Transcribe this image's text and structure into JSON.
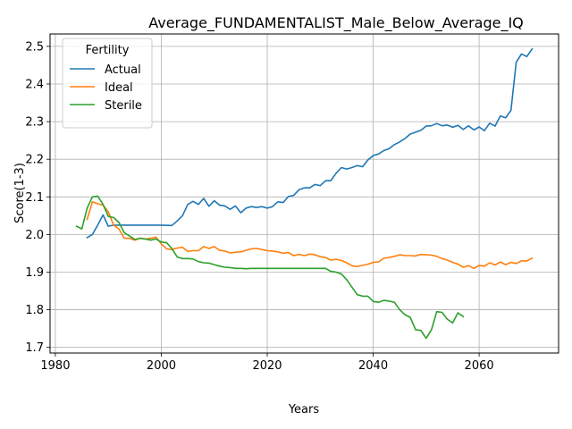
{
  "chart_data": {
    "type": "line",
    "title": "Average_FUNDAMENTALIST_Male_Below_Average_IQ",
    "xlabel": "Years",
    "ylabel": "Score(1-3)",
    "xlim": [
      1979,
      2075
    ],
    "ylim": [
      1.685,
      2.533
    ],
    "xticks": [
      1980,
      2000,
      2020,
      2040,
      2060
    ],
    "yticks": [
      1.7,
      1.8,
      1.9,
      2.0,
      2.1,
      2.2,
      2.3,
      2.4,
      2.5
    ],
    "grid": true,
    "legend": {
      "title": "Fertility",
      "placement": "top-left"
    },
    "series": [
      {
        "name": "Actual",
        "color": "#1f77b4",
        "x": [
          1986,
          1987,
          1988,
          1989,
          1990,
          1991,
          1992,
          1993,
          1995,
          1998,
          2000,
          2002,
          2003,
          2004,
          2005,
          2006,
          2007,
          2008,
          2009,
          2010,
          2011,
          2012,
          2013,
          2014,
          2015,
          2016,
          2017,
          2018,
          2019,
          2020,
          2021,
          2022,
          2023,
          2024,
          2025,
          2026,
          2027,
          2028,
          2029,
          2030,
          2031,
          2032,
          2033,
          2034,
          2035,
          2036,
          2037,
          2038,
          2039,
          2040,
          2041,
          2042,
          2043,
          2044,
          2045,
          2046,
          2047,
          2048,
          2049,
          2050,
          2051,
          2052,
          2053,
          2054,
          2055,
          2056,
          2057,
          2058,
          2059,
          2060,
          2061,
          2062,
          2063,
          2064,
          2065,
          2066,
          2067,
          2068,
          2069,
          2070
        ],
        "values": [
          1.992,
          2.0,
          2.025,
          2.052,
          2.022,
          2.025,
          2.025,
          2.025,
          2.025,
          2.025,
          2.025,
          2.024,
          2.036,
          2.05,
          2.08,
          2.088,
          2.08,
          2.096,
          2.075,
          2.09,
          2.078,
          2.076,
          2.067,
          2.076,
          2.058,
          2.07,
          2.074,
          2.072,
          2.074,
          2.07,
          2.074,
          2.087,
          2.085,
          2.101,
          2.104,
          2.119,
          2.124,
          2.124,
          2.133,
          2.13,
          2.143,
          2.143,
          2.163,
          2.178,
          2.174,
          2.178,
          2.183,
          2.18,
          2.198,
          2.21,
          2.214,
          2.223,
          2.228,
          2.239,
          2.246,
          2.255,
          2.267,
          2.272,
          2.277,
          2.288,
          2.289,
          2.295,
          2.289,
          2.291,
          2.285,
          2.29,
          2.279,
          2.289,
          2.278,
          2.286,
          2.276,
          2.296,
          2.288,
          2.315,
          2.31,
          2.33,
          2.458,
          2.48,
          2.473,
          2.493
        ]
      },
      {
        "name": "Ideal",
        "color": "#ff7f0e",
        "x": [
          1986,
          1987,
          1988,
          1989,
          1990,
          1991,
          1992,
          1993,
          1994,
          1995,
          1996,
          1997,
          1998,
          1999,
          2000,
          2001,
          2002,
          2003,
          2004,
          2005,
          2006,
          2007,
          2008,
          2009,
          2010,
          2011,
          2012,
          2013,
          2014,
          2015,
          2016,
          2017,
          2018,
          2019,
          2020,
          2021,
          2022,
          2023,
          2024,
          2025,
          2026,
          2027,
          2028,
          2029,
          2030,
          2031,
          2032,
          2033,
          2034,
          2035,
          2036,
          2037,
          2038,
          2039,
          2040,
          2041,
          2042,
          2043,
          2044,
          2045,
          2046,
          2047,
          2048,
          2049,
          2050,
          2051,
          2052,
          2053,
          2054,
          2055,
          2056,
          2057,
          2058,
          2059,
          2060,
          2061,
          2062,
          2063,
          2064,
          2065,
          2066,
          2067,
          2068,
          2069,
          2070
        ],
        "values": [
          2.04,
          2.087,
          2.082,
          2.078,
          2.06,
          2.025,
          2.015,
          1.99,
          1.99,
          1.985,
          1.99,
          1.988,
          1.99,
          1.993,
          1.975,
          1.962,
          1.96,
          1.964,
          1.966,
          1.955,
          1.957,
          1.957,
          1.968,
          1.963,
          1.968,
          1.958,
          1.956,
          1.951,
          1.953,
          1.954,
          1.958,
          1.962,
          1.963,
          1.96,
          1.957,
          1.956,
          1.954,
          1.95,
          1.952,
          1.944,
          1.947,
          1.944,
          1.948,
          1.946,
          1.941,
          1.939,
          1.932,
          1.934,
          1.931,
          1.925,
          1.917,
          1.915,
          1.918,
          1.921,
          1.926,
          1.927,
          1.937,
          1.939,
          1.942,
          1.946,
          1.944,
          1.944,
          1.943,
          1.947,
          1.946,
          1.945,
          1.942,
          1.936,
          1.932,
          1.926,
          1.921,
          1.913,
          1.917,
          1.91,
          1.918,
          1.916,
          1.925,
          1.919,
          1.927,
          1.92,
          1.926,
          1.923,
          1.93,
          1.93,
          1.937
        ]
      },
      {
        "name": "Sterile",
        "color": "#2ca02c",
        "x": [
          1984,
          1985,
          1986,
          1987,
          1988,
          1989,
          1990,
          1991,
          1992,
          1993,
          1994,
          1995,
          1996,
          1997,
          1998,
          1999,
          2000,
          2001,
          2002,
          2003,
          2004,
          2005,
          2006,
          2007,
          2008,
          2009,
          2010,
          2011,
          2012,
          2013,
          2014,
          2015,
          2016,
          2017,
          2018,
          2020,
          2025,
          2031,
          2032,
          2033,
          2034,
          2035,
          2036,
          2037,
          2038,
          2039,
          2040,
          2041,
          2042,
          2043,
          2044,
          2045,
          2046,
          2047,
          2048,
          2049,
          2050,
          2051,
          2052,
          2053,
          2054,
          2055,
          2056,
          2057
        ],
        "values": [
          2.022,
          2.015,
          2.07,
          2.1,
          2.102,
          2.08,
          2.048,
          2.045,
          2.032,
          2.005,
          1.996,
          1.987,
          1.99,
          1.988,
          1.985,
          1.988,
          1.98,
          1.978,
          1.963,
          1.94,
          1.936,
          1.936,
          1.935,
          1.928,
          1.925,
          1.924,
          1.92,
          1.916,
          1.913,
          1.912,
          1.91,
          1.91,
          1.909,
          1.91,
          1.91,
          1.91,
          1.91,
          1.91,
          1.902,
          1.9,
          1.895,
          1.88,
          1.86,
          1.84,
          1.836,
          1.836,
          1.822,
          1.82,
          1.825,
          1.823,
          1.82,
          1.8,
          1.787,
          1.78,
          1.747,
          1.745,
          1.724,
          1.747,
          1.795,
          1.793,
          1.775,
          1.765,
          1.792,
          1.782
        ]
      }
    ]
  }
}
